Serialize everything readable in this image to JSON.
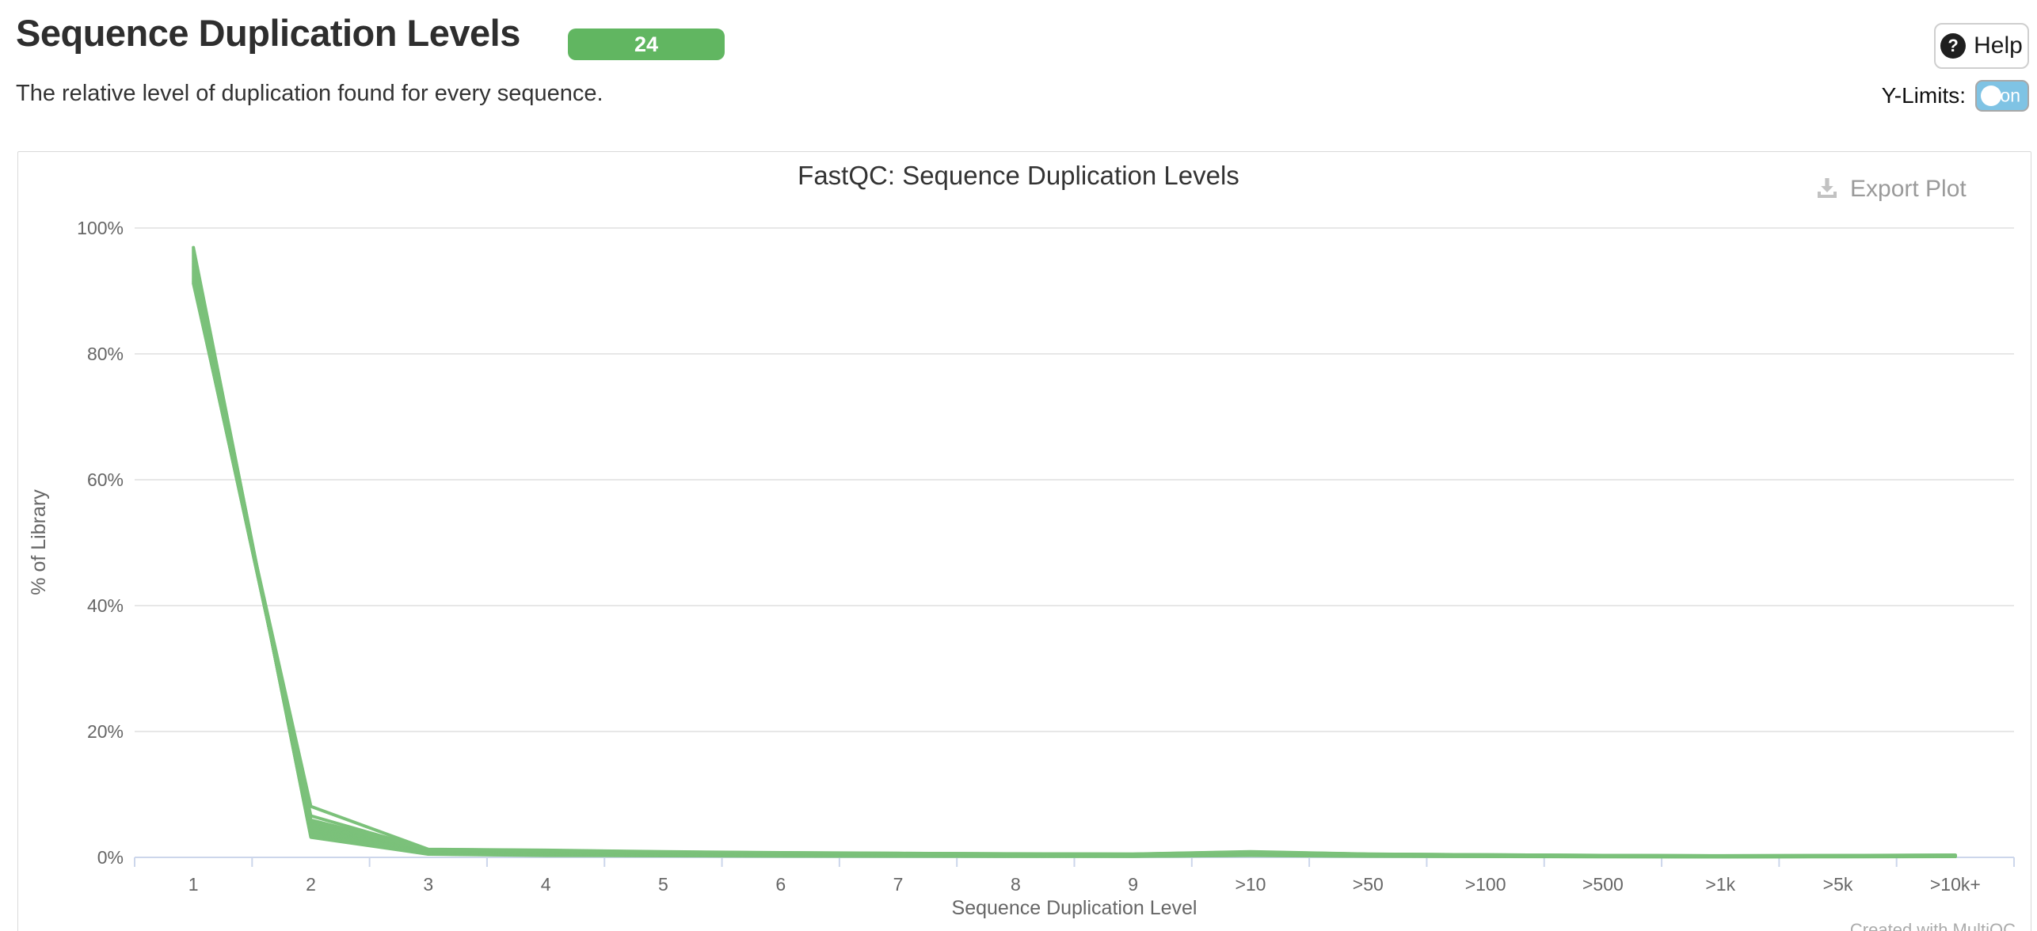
{
  "header": {
    "title": "Sequence Duplication Levels",
    "sample_count": "24",
    "description": "The relative level of duplication found for every sequence.",
    "help_label": "Help",
    "help_icon": "question-circle-icon",
    "ylimits_label": "Y-Limits:",
    "ylimits_state": "on"
  },
  "toolbar": {
    "export_label": "Export Plot",
    "export_icon": "download-icon"
  },
  "footer": {
    "credit": "Created with MultiQC"
  },
  "colors": {
    "badge_green": "#61b661",
    "line_green": "#7bc17a",
    "toggle_blue": "#7fc3e4",
    "axis_line": "#ccd6eb",
    "gridline": "#e7e7e7",
    "tick_text": "#666666"
  },
  "chart_data": {
    "type": "line",
    "title": "FastQC: Sequence Duplication Levels",
    "xlabel": "Sequence Duplication Level",
    "ylabel": "% of Library",
    "categories": [
      "1",
      "2",
      "3",
      "4",
      "5",
      "6",
      "7",
      "8",
      "9",
      ">10",
      ">50",
      ">100",
      ">500",
      ">1k",
      ">5k",
      ">10k+"
    ],
    "yticks": [
      "0%",
      "20%",
      "40%",
      "60%",
      "80%",
      "100%"
    ],
    "ylim": [
      0,
      100
    ],
    "grid": true,
    "legend": "none",
    "series": [
      [
        96.9,
        3.2,
        0.5,
        0.3,
        0.25,
        0.2,
        0.18,
        0.16,
        0.15,
        0.3,
        0.18,
        0.14,
        0.1,
        0.08,
        0.1,
        0.12
      ],
      [
        96.65,
        3.33,
        0.53,
        0.34,
        0.28,
        0.22,
        0.2,
        0.18,
        0.17,
        0.33,
        0.2,
        0.15,
        0.11,
        0.09,
        0.11,
        0.13
      ],
      [
        96.4,
        3.46,
        0.57,
        0.37,
        0.31,
        0.25,
        0.22,
        0.2,
        0.18,
        0.35,
        0.21,
        0.16,
        0.12,
        0.1,
        0.12,
        0.14
      ],
      [
        96.16,
        3.59,
        0.6,
        0.41,
        0.33,
        0.27,
        0.24,
        0.21,
        0.2,
        0.38,
        0.23,
        0.18,
        0.13,
        0.1,
        0.13,
        0.15
      ],
      [
        95.91,
        3.72,
        0.64,
        0.45,
        0.36,
        0.3,
        0.26,
        0.23,
        0.22,
        0.4,
        0.24,
        0.19,
        0.14,
        0.11,
        0.13,
        0.16
      ],
      [
        95.66,
        3.85,
        0.67,
        0.48,
        0.39,
        0.32,
        0.28,
        0.25,
        0.23,
        0.43,
        0.26,
        0.2,
        0.15,
        0.12,
        0.14,
        0.17
      ],
      [
        95.41,
        3.98,
        0.71,
        0.52,
        0.42,
        0.34,
        0.31,
        0.27,
        0.25,
        0.46,
        0.27,
        0.21,
        0.16,
        0.13,
        0.15,
        0.18
      ],
      [
        95.17,
        4.11,
        0.74,
        0.56,
        0.45,
        0.37,
        0.33,
        0.29,
        0.27,
        0.48,
        0.29,
        0.23,
        0.17,
        0.13,
        0.16,
        0.19
      ],
      [
        94.92,
        4.24,
        0.78,
        0.6,
        0.48,
        0.39,
        0.35,
        0.31,
        0.28,
        0.51,
        0.3,
        0.24,
        0.18,
        0.14,
        0.17,
        0.2
      ],
      [
        94.67,
        4.37,
        0.81,
        0.63,
        0.5,
        0.42,
        0.37,
        0.32,
        0.3,
        0.53,
        0.32,
        0.25,
        0.19,
        0.15,
        0.18,
        0.21
      ],
      [
        94.42,
        4.5,
        0.85,
        0.67,
        0.53,
        0.44,
        0.39,
        0.34,
        0.32,
        0.56,
        0.33,
        0.26,
        0.2,
        0.16,
        0.19,
        0.22
      ],
      [
        94.17,
        4.63,
        0.88,
        0.71,
        0.56,
        0.46,
        0.41,
        0.36,
        0.33,
        0.59,
        0.35,
        0.27,
        0.21,
        0.17,
        0.2,
        0.23
      ],
      [
        93.93,
        4.77,
        0.92,
        0.74,
        0.59,
        0.49,
        0.43,
        0.38,
        0.35,
        0.61,
        0.36,
        0.29,
        0.21,
        0.17,
        0.2,
        0.25
      ],
      [
        93.68,
        4.9,
        0.95,
        0.78,
        0.62,
        0.51,
        0.45,
        0.4,
        0.36,
        0.64,
        0.38,
        0.3,
        0.22,
        0.18,
        0.21,
        0.26
      ],
      [
        93.43,
        5.03,
        0.99,
        0.82,
        0.65,
        0.53,
        0.47,
        0.42,
        0.38,
        0.67,
        0.39,
        0.31,
        0.23,
        0.19,
        0.22,
        0.27
      ],
      [
        93.18,
        5.16,
        1.02,
        0.85,
        0.67,
        0.56,
        0.49,
        0.43,
        0.4,
        0.69,
        0.41,
        0.32,
        0.24,
        0.2,
        0.23,
        0.28
      ],
      [
        92.93,
        5.29,
        1.06,
        0.89,
        0.7,
        0.58,
        0.51,
        0.45,
        0.41,
        0.72,
        0.42,
        0.33,
        0.25,
        0.21,
        0.24,
        0.29
      ],
      [
        92.69,
        5.42,
        1.09,
        0.93,
        0.73,
        0.61,
        0.53,
        0.47,
        0.43,
        0.74,
        0.44,
        0.35,
        0.26,
        0.21,
        0.25,
        0.3
      ],
      [
        92.44,
        5.55,
        1.13,
        0.97,
        0.76,
        0.63,
        0.56,
        0.49,
        0.45,
        0.77,
        0.45,
        0.36,
        0.27,
        0.22,
        0.26,
        0.31
      ],
      [
        92.19,
        5.68,
        1.16,
        1.0,
        0.79,
        0.65,
        0.58,
        0.51,
        0.46,
        0.8,
        0.47,
        0.37,
        0.28,
        0.23,
        0.27,
        0.32
      ],
      [
        91.94,
        5.81,
        1.2,
        1.04,
        0.82,
        0.68,
        0.6,
        0.53,
        0.48,
        0.82,
        0.48,
        0.38,
        0.29,
        0.24,
        0.27,
        0.33
      ],
      [
        91.7,
        5.94,
        1.23,
        1.08,
        0.84,
        0.7,
        0.62,
        0.54,
        0.5,
        0.85,
        0.5,
        0.4,
        0.3,
        0.24,
        0.28,
        0.34
      ],
      [
        91.45,
        6.6,
        1.27,
        1.11,
        0.87,
        0.73,
        0.64,
        0.56,
        0.51,
        0.87,
        0.51,
        0.41,
        0.31,
        0.25,
        0.29,
        0.35
      ],
      [
        91.2,
        8.1,
        1.3,
        1.15,
        0.9,
        0.75,
        0.66,
        0.58,
        0.53,
        0.9,
        0.53,
        0.42,
        0.32,
        0.26,
        0.3,
        0.36
      ]
    ]
  }
}
